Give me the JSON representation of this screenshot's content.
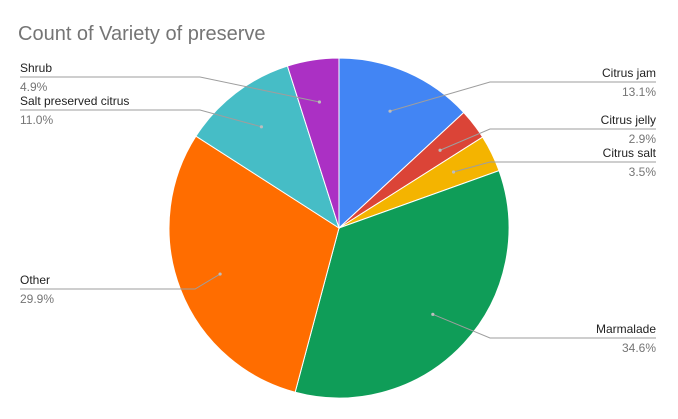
{
  "chart_data": {
    "type": "pie",
    "title": "Count of Variety of preserve",
    "slices": [
      {
        "label": "Citrus jam",
        "value": 13.1,
        "value_label": "13.1%",
        "color": "#4285F4"
      },
      {
        "label": "Citrus jelly",
        "value": 2.9,
        "value_label": "2.9%",
        "color": "#DB4437"
      },
      {
        "label": "Citrus salt",
        "value": 3.5,
        "value_label": "3.5%",
        "color": "#F4B400"
      },
      {
        "label": "Marmalade",
        "value": 34.6,
        "value_label": "34.6%",
        "color": "#0F9D58"
      },
      {
        "label": "Other",
        "value": 29.9,
        "value_label": "29.9%",
        "color": "#FF6D00"
      },
      {
        "label": "Salt preserved citrus",
        "value": 11.0,
        "value_label": "11.0%",
        "color": "#46BDC6"
      },
      {
        "label": "Shrub",
        "value": 4.9,
        "value_label": "4.9%",
        "color": "#AB30C4"
      }
    ],
    "start_angle": "12 o'clock",
    "direction": "clockwise"
  }
}
